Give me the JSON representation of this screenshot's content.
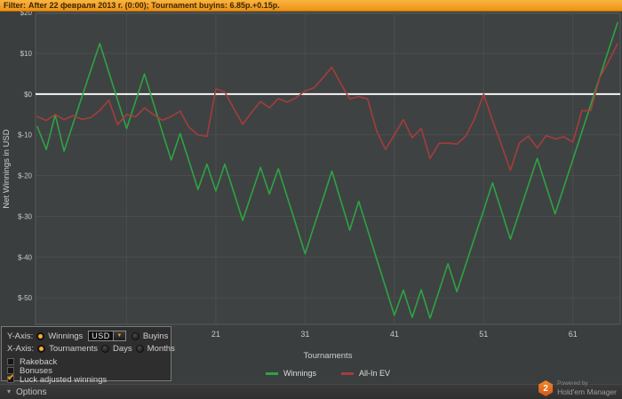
{
  "filter_bar": {
    "label": "Filter:",
    "text": "After 22 февраля 2013 г. (0:00); Tournament buyins: 6.85р.+0.15р."
  },
  "chart_data": {
    "type": "line",
    "xlabel": "Tournaments",
    "ylabel": "Net Winnings in USD",
    "x_start": 1,
    "xlim": [
      0.8,
      66.3
    ],
    "ylim": [
      -56.5,
      19.8
    ],
    "y_ticks": [
      20,
      10,
      0,
      -10,
      -20,
      -30,
      -40,
      -50
    ],
    "y_tick_labels": [
      "$20",
      "$10",
      "$0",
      "$-10",
      "$-20",
      "$-30",
      "$-40",
      "$-50"
    ],
    "x_ticks": [
      21,
      31,
      41,
      51,
      61
    ],
    "x_tick_labels": [
      "21",
      "31",
      "41",
      "51",
      "61"
    ],
    "x_gridlines": [
      11,
      21,
      31,
      41,
      51,
      61
    ],
    "zero_line": 0,
    "grid": true,
    "legend_position": "bottom",
    "colors": {
      "plot_bg": "#3f4242",
      "grid": "#4a4e4e",
      "border": "#565b5b",
      "zero_line": "#f5f5f5",
      "tick_text": "#c9c9c9"
    },
    "series": [
      {
        "name": "Winnings",
        "color": "#2da343",
        "values": [
          -8,
          -13.6,
          -5.1,
          -14,
          -7.3,
          -0.7,
          5.9,
          12.4,
          5.4,
          -1.5,
          -8.5,
          -1.8,
          4.9,
          -2.2,
          -9.3,
          -16.2,
          -9.7,
          -16.5,
          -23.4,
          -17.2,
          -23.8,
          -17.2,
          -24,
          -31,
          -24.5,
          -18,
          -24.5,
          -18.3,
          -25.3,
          -32.2,
          -39.2,
          -32.4,
          -25.7,
          -18.9,
          -26.2,
          -33.4,
          -26.3,
          -33.3,
          -40.3,
          -47.3,
          -54.3,
          -48.1,
          -54.8,
          -48,
          -55,
          -48.3,
          -41.6,
          -48.5,
          -41.8,
          -35.1,
          -28.5,
          -21.8,
          -28.7,
          -35.6,
          -29,
          -22.4,
          -15.8,
          -22.6,
          -29.4,
          -22.7,
          -16,
          -9.3,
          -2.6,
          4.1,
          10.8,
          17.5
        ]
      },
      {
        "name": "All-In EV",
        "color": "#a33d3d",
        "values": [
          -5.5,
          -6.5,
          -5,
          -6.3,
          -5.3,
          -6.2,
          -5.8,
          -4,
          -1.5,
          -7.5,
          -5,
          -5.6,
          -3.4,
          -5,
          -6.4,
          -5.5,
          -4.2,
          -8.2,
          -10,
          -10.4,
          1.3,
          0.5,
          -3.5,
          -7.4,
          -4.5,
          -1.8,
          -3.4,
          -1.1,
          -2,
          -0.9,
          0.8,
          1.5,
          4,
          6.6,
          2.5,
          -1.2,
          -0.6,
          -1.2,
          -8.9,
          -13.6,
          -10,
          -6.3,
          -10.7,
          -8.4,
          -15.8,
          -12.1,
          -12,
          -12.3,
          -10.3,
          -6,
          0,
          -6.5,
          -12.5,
          -18.7,
          -12,
          -10.3,
          -13.2,
          -10.2,
          -11,
          -10.5,
          -11.8,
          -4.1,
          -4.1,
          4,
          8,
          12.3
        ]
      }
    ]
  },
  "controls": {
    "y_axis": {
      "label": "Y-Axis:",
      "currency": "USD",
      "options": [
        {
          "label": "Winnings",
          "selected": true
        },
        {
          "label": "Buyins",
          "selected": false
        }
      ]
    },
    "x_axis": {
      "label": "X-Axis:",
      "options": [
        {
          "label": "Tournaments",
          "selected": true
        },
        {
          "label": "Days",
          "selected": false
        },
        {
          "label": "Months",
          "selected": false
        }
      ]
    },
    "checkboxes": [
      {
        "label": "Rakeback",
        "checked": false
      },
      {
        "label": "Bonuses",
        "checked": false
      },
      {
        "label": "Luck adjusted winnings",
        "checked": true
      }
    ]
  },
  "options_bar": {
    "label": "Options",
    "chevron": "▾"
  },
  "powered_by": {
    "badge": "2",
    "line1": "Powered by",
    "line2": "Hold'em Manager"
  }
}
